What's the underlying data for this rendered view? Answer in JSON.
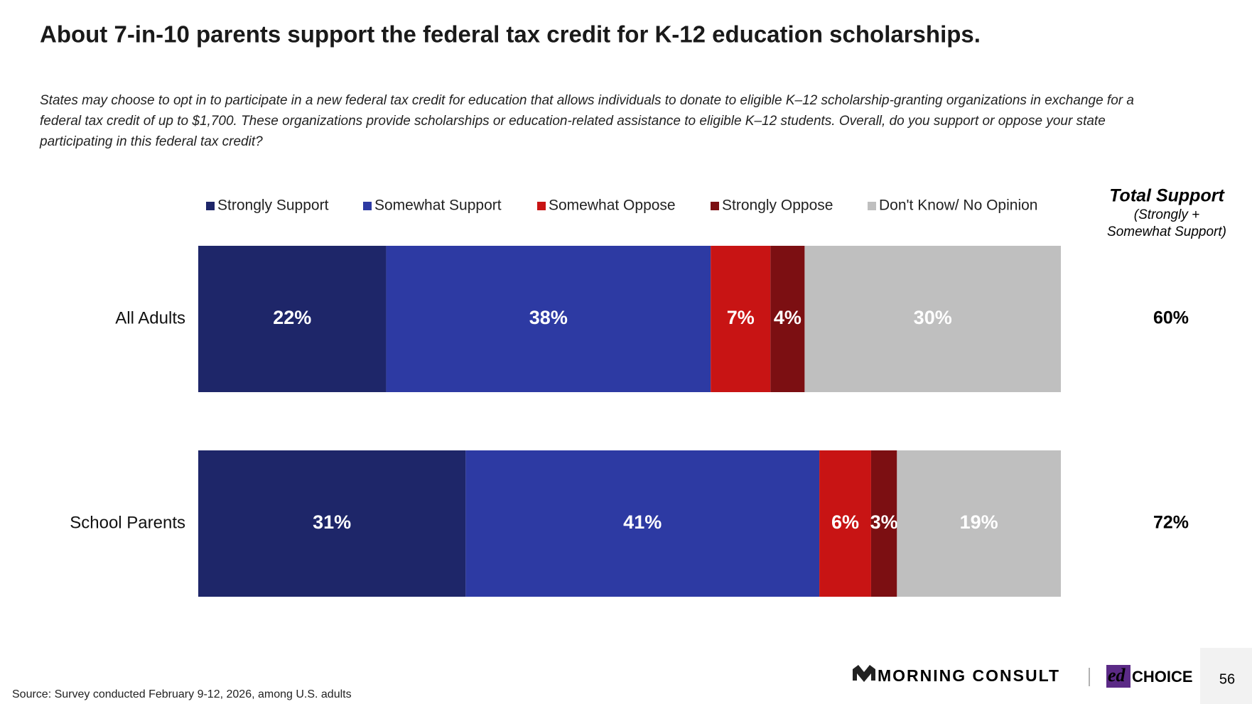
{
  "chart_data": {
    "type": "bar",
    "orientation": "horizontal",
    "stack": "percent",
    "title": "About 7-in-10 parents support the federal tax credit for K-12 education scholarships.",
    "subtitle_lines": [
      "States may choose to opt in to participate in a new federal tax credit for education that allows individuals to donate to eligible K–12 scholarship-granting organizations in exchange for a",
      "federal tax credit of up to $1,700. These organizations provide scholarships or education-related assistance to eligible K–12 students. Overall, do you support or oppose your state",
      "participating in this federal tax credit?"
    ],
    "categories": [
      "All Adults",
      "School Parents"
    ],
    "series": [
      {
        "name": "Strongly Support",
        "color": "#1e2669",
        "values": [
          22,
          31
        ],
        "value_labels": [
          "22%",
          "31%"
        ]
      },
      {
        "name": "Somewhat Support",
        "color": "#2d3aa3",
        "values": [
          38,
          41
        ],
        "value_labels": [
          "38%",
          "41%"
        ]
      },
      {
        "name": "Somewhat Oppose",
        "color": "#c81414",
        "values": [
          7,
          6
        ],
        "value_labels": [
          "7%",
          "6%"
        ]
      },
      {
        "name": "Strongly Oppose",
        "color": "#7c0f12",
        "values": [
          4,
          3
        ],
        "value_labels": [
          "4%",
          "3%"
        ]
      },
      {
        "name": "Don't Know/ No Opinion",
        "color": "#bfbfbf",
        "values": [
          30,
          19
        ],
        "value_labels": [
          "30%",
          "19%"
        ]
      }
    ],
    "total_support": {
      "title": "Total Support",
      "subtitle_lines": [
        "(Strongly +",
        "Somewhat Support)"
      ],
      "values": [
        60,
        72
      ],
      "value_labels": [
        "60%",
        "72%"
      ]
    },
    "source": "Source: Survey conducted February 9-12, 2026, among U.S. adults"
  },
  "footer": {
    "logo_1": "MORNING CONSULT",
    "logo_2_a": "ed",
    "logo_2_b": "CHOICE",
    "page_number": "56"
  }
}
